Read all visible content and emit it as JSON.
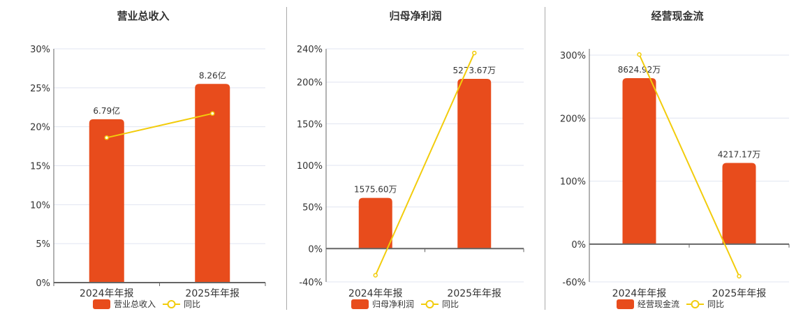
{
  "colors": {
    "bar": "#E84C1C",
    "line": "#F2CC0C",
    "grid": "#E0E4F0",
    "axis": "#666666"
  },
  "chart_data": [
    {
      "type": "bar+line",
      "title": "营业总收入",
      "categories": [
        "2024年年报",
        "2025年年报"
      ],
      "bar_series": {
        "name": "营业总收入",
        "values": [
          6.79,
          8.26
        ],
        "labels": [
          "6.79亿",
          "8.26亿"
        ],
        "unit": "亿"
      },
      "line_series": {
        "name": "同比",
        "values": [
          18.6,
          21.7
        ],
        "unit": "%"
      },
      "yticks": [
        "0%",
        "5%",
        "10%",
        "15%",
        "20%",
        "25%",
        "30%"
      ],
      "ytick_values": [
        0,
        5,
        10,
        15,
        20,
        25,
        30
      ],
      "ylim": [
        0,
        30
      ],
      "grid": true,
      "legend": "bottom"
    },
    {
      "type": "bar+line",
      "title": "归母净利润",
      "categories": [
        "2024年年报",
        "2025年年报"
      ],
      "bar_series": {
        "name": "归母净利润",
        "values": [
          1575.6,
          5273.67
        ],
        "labels": [
          "1575.60万",
          "5273.67万"
        ],
        "unit": "万"
      },
      "line_series": {
        "name": "同比",
        "values": [
          -32,
          235
        ],
        "unit": "%"
      },
      "yticks": [
        "-40%",
        "0%",
        "50%",
        "100%",
        "150%",
        "200%",
        "240%"
      ],
      "ytick_values": [
        -40,
        0,
        50,
        100,
        150,
        200,
        240
      ],
      "ylim": [
        -40,
        240
      ],
      "grid": true,
      "legend": "bottom"
    },
    {
      "type": "bar+line",
      "title": "经营现金流",
      "categories": [
        "2024年年报",
        "2025年年报"
      ],
      "bar_series": {
        "name": "经营现金流",
        "values": [
          8624.92,
          4217.17
        ],
        "labels": [
          "8624.92万",
          "4217.17万"
        ],
        "unit": "万"
      },
      "line_series": {
        "name": "同比",
        "values": [
          301,
          -51
        ],
        "unit": "%"
      },
      "yticks": [
        "-60%",
        "0%",
        "100%",
        "200%",
        "300%"
      ],
      "ytick_values": [
        -60,
        0,
        100,
        200,
        300
      ],
      "ylim": [
        -60,
        310
      ],
      "grid": true,
      "legend": "bottom"
    }
  ]
}
